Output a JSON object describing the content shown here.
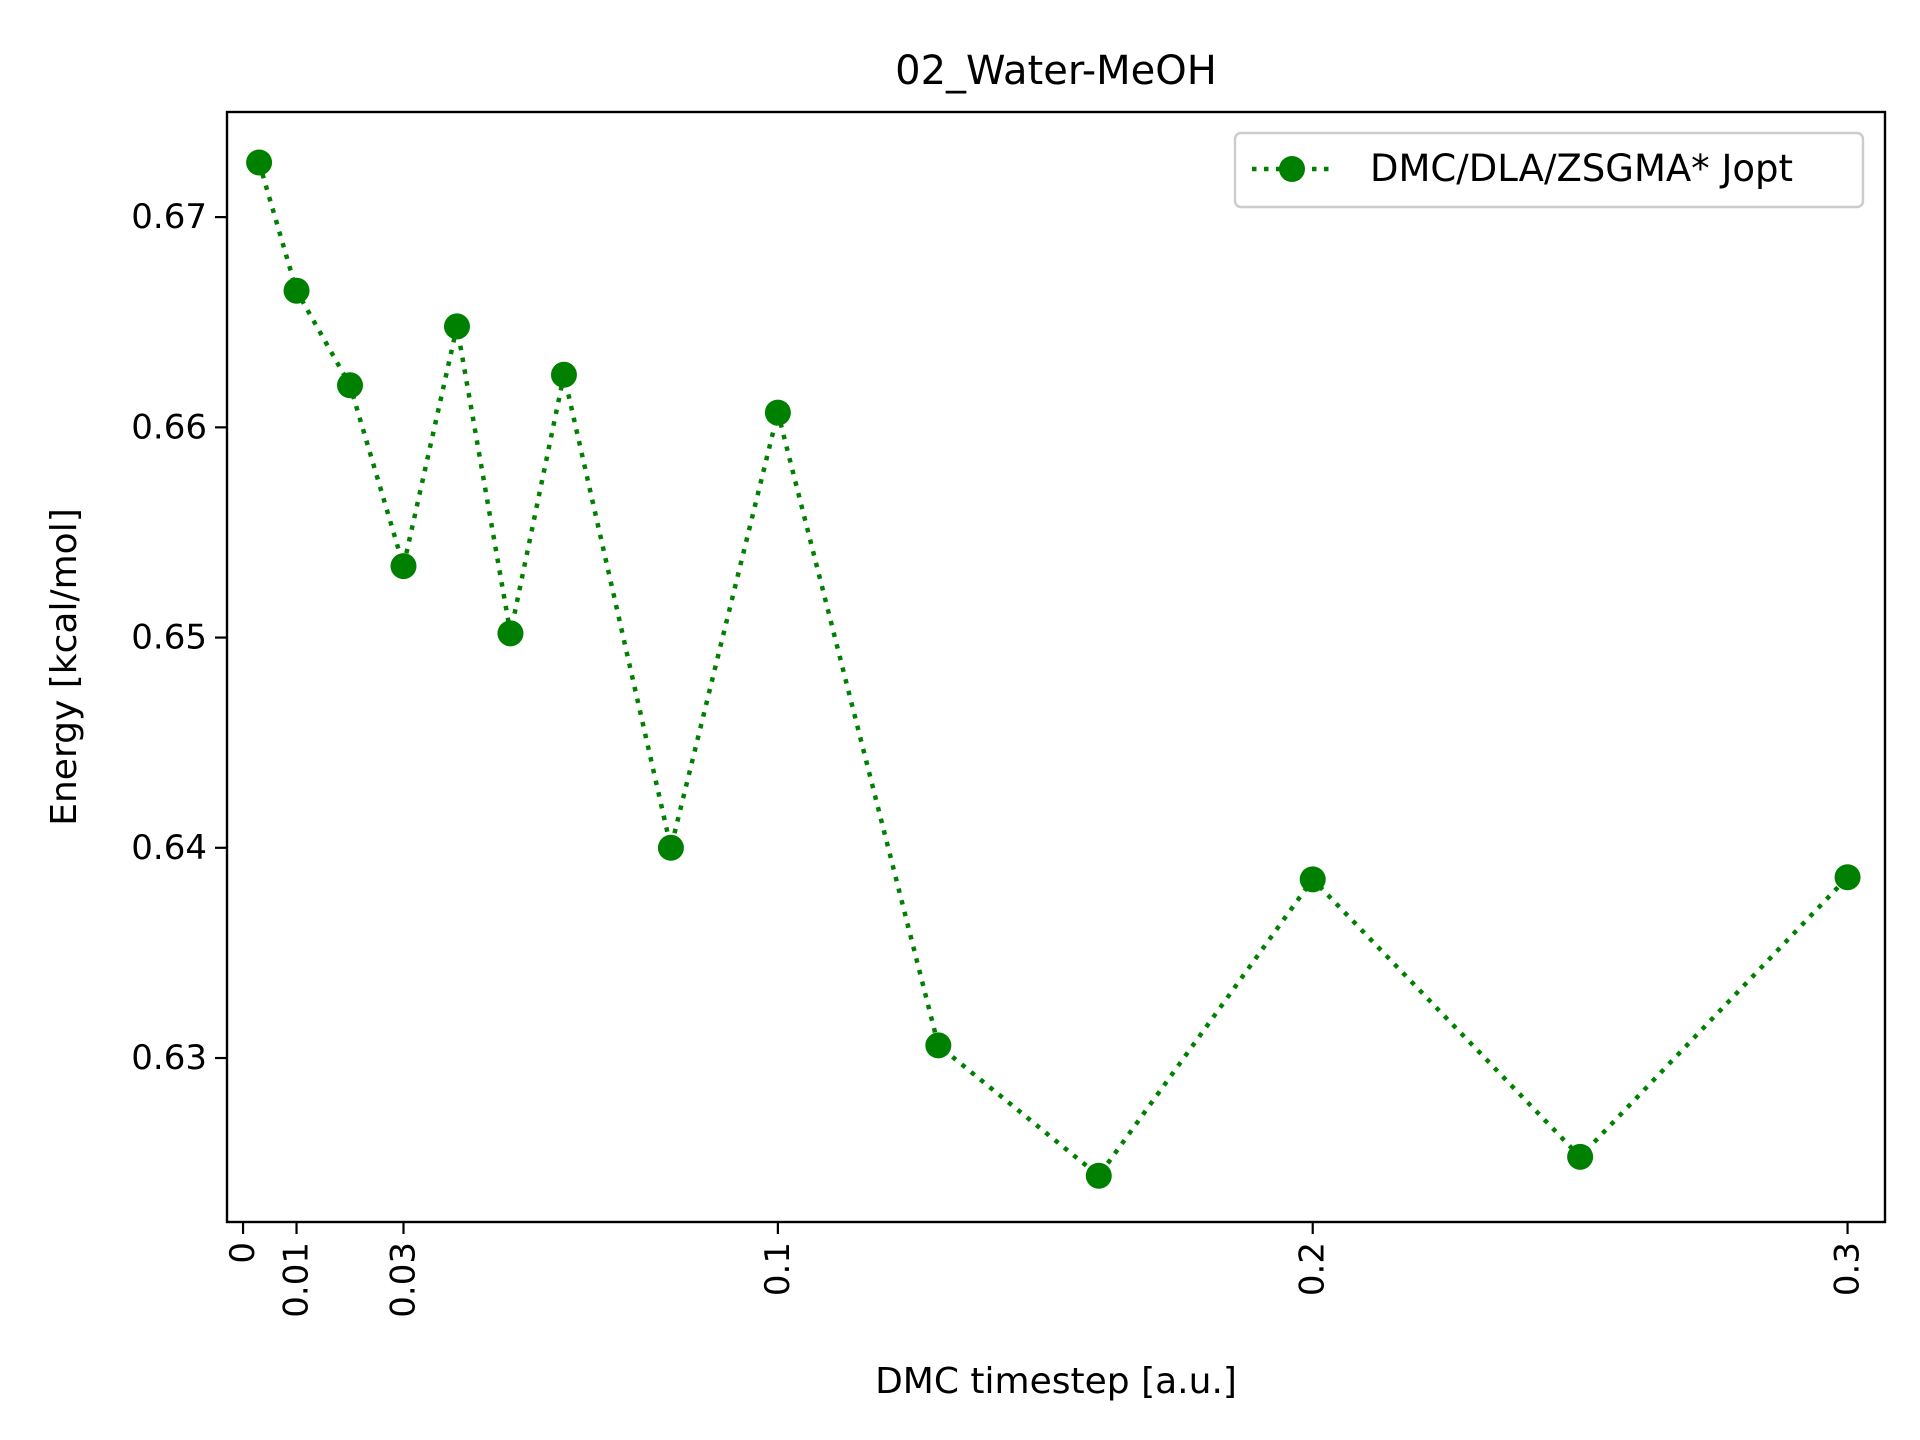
{
  "chart_data": {
    "type": "line",
    "title": "02_Water-MeOH",
    "xlabel": "DMC timestep [a.u.]",
    "ylabel": "Energy [kcal/mol]",
    "xlim": [
      -0.003,
      0.307
    ],
    "ylim": [
      0.6222,
      0.675
    ],
    "xticks": [
      0,
      0.01,
      0.03,
      0.1,
      0.2,
      0.3
    ],
    "xtick_labels": [
      "0",
      "0.01",
      "0.03",
      "0.1",
      "0.2",
      "0.3"
    ],
    "yticks": [
      0.63,
      0.64,
      0.65,
      0.66,
      0.67
    ],
    "ytick_labels": [
      "0.63",
      "0.64",
      "0.65",
      "0.66",
      "0.67"
    ],
    "grid": false,
    "legend_position": "top-right",
    "series": [
      {
        "name": "DMC/DLA/ZSGMA* Jopt",
        "color": "#008000",
        "linestyle": "dotted",
        "marker": "circle",
        "x": [
          0.003,
          0.01,
          0.02,
          0.03,
          0.04,
          0.05,
          0.06,
          0.08,
          0.1,
          0.13,
          0.16,
          0.2,
          0.25,
          0.3
        ],
        "y": [
          0.6726,
          0.6665,
          0.662,
          0.6534,
          0.6648,
          0.6502,
          0.6625,
          0.64,
          0.6607,
          0.6306,
          0.6244,
          0.6385,
          0.6253,
          0.6386
        ]
      }
    ]
  }
}
